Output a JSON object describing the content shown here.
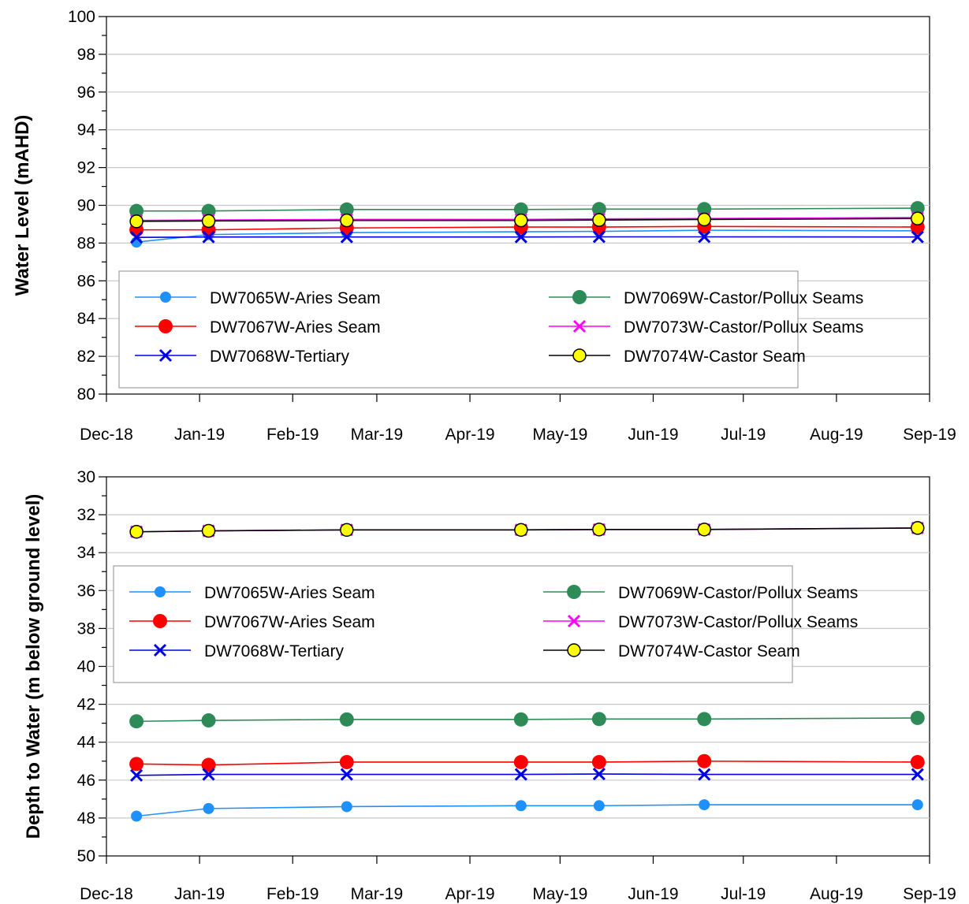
{
  "chart_data": [
    {
      "type": "line",
      "title": "",
      "xlabel": "",
      "ylabel": "Water Level (mAHD)",
      "ylim": [
        80,
        100
      ],
      "y_ticks": [
        80,
        82,
        84,
        86,
        88,
        90,
        92,
        94,
        96,
        98,
        100
      ],
      "y_minor_step": 1,
      "y_reversed": false,
      "xlim": [
        "2018-12-01",
        "2019-09-01"
      ],
      "x_ticks": [
        {
          "date": "2018-12-01",
          "label": "Dec-18"
        },
        {
          "date": "2019-01-01",
          "label": "Jan-19"
        },
        {
          "date": "2019-02-01",
          "label": "Feb-19"
        },
        {
          "date": "2019-03-01",
          "label": "Mar-19"
        },
        {
          "date": "2019-04-01",
          "label": "Apr-19"
        },
        {
          "date": "2019-05-01",
          "label": "May-19"
        },
        {
          "date": "2019-06-01",
          "label": "Jun-19"
        },
        {
          "date": "2019-07-01",
          "label": "Jul-19"
        },
        {
          "date": "2019-08-01",
          "label": "Aug-19"
        },
        {
          "date": "2019-09-01",
          "label": "Sep-19"
        }
      ],
      "grid": "horizontal",
      "legend_position": "lower-left",
      "x": [
        "2018-12-11",
        "2019-01-04",
        "2019-02-19",
        "2019-04-18",
        "2019-05-14",
        "2019-06-18",
        "2019-08-28"
      ],
      "series": [
        {
          "name": "DW7065W-Aries Seam",
          "color": "#1E90FF",
          "marker": "circle-small",
          "values": [
            88.05,
            88.45,
            88.55,
            88.6,
            88.62,
            88.68,
            88.65
          ]
        },
        {
          "name": "DW7069W-Castor/Pollux Seams",
          "color": "#2E8B57",
          "marker": "circle-large",
          "values": [
            89.7,
            89.7,
            89.78,
            89.78,
            89.8,
            89.8,
            89.85
          ]
        },
        {
          "name": "DW7067W-Aries Seam",
          "color": "#FF0000",
          "marker": "circle-large",
          "values": [
            88.7,
            88.7,
            88.8,
            88.85,
            88.85,
            88.88,
            88.85
          ]
        },
        {
          "name": "DW7073W-Castor/Pollux Seams",
          "color": "#FF00FF",
          "marker": "x",
          "values": [
            89.2,
            89.22,
            89.25,
            89.25,
            89.28,
            89.3,
            89.35
          ]
        },
        {
          "name": "DW7068W-Tertiary",
          "color": "#0000E0",
          "marker": "x",
          "values": [
            88.3,
            88.32,
            88.32,
            88.32,
            88.33,
            88.33,
            88.32
          ]
        },
        {
          "name": "DW7074W-Castor Seam",
          "color": "#000000",
          "marker": "circle-yellow",
          "values": [
            89.15,
            89.17,
            89.2,
            89.2,
            89.22,
            89.25,
            89.3
          ]
        }
      ]
    },
    {
      "type": "line",
      "title": "",
      "xlabel": "",
      "ylabel": "Depth to Water (m below ground level)",
      "ylim": [
        30,
        50
      ],
      "y_ticks": [
        30,
        32,
        34,
        36,
        38,
        40,
        42,
        44,
        46,
        48,
        50
      ],
      "y_minor_step": 1,
      "y_reversed": true,
      "xlim": [
        "2018-12-01",
        "2019-09-01"
      ],
      "x_ticks": [
        {
          "date": "2018-12-01",
          "label": "Dec-18"
        },
        {
          "date": "2019-01-01",
          "label": "Jan-19"
        },
        {
          "date": "2019-02-01",
          "label": "Feb-19"
        },
        {
          "date": "2019-03-01",
          "label": "Mar-19"
        },
        {
          "date": "2019-04-01",
          "label": "Apr-19"
        },
        {
          "date": "2019-05-01",
          "label": "May-19"
        },
        {
          "date": "2019-06-01",
          "label": "Jun-19"
        },
        {
          "date": "2019-07-01",
          "label": "Jul-19"
        },
        {
          "date": "2019-08-01",
          "label": "Aug-19"
        },
        {
          "date": "2019-09-01",
          "label": "Sep-19"
        }
      ],
      "grid": "horizontal",
      "legend_position": "upper-left",
      "x": [
        "2018-12-11",
        "2019-01-04",
        "2019-02-19",
        "2019-04-18",
        "2019-05-14",
        "2019-06-18",
        "2019-08-28"
      ],
      "series": [
        {
          "name": "DW7065W-Aries Seam",
          "color": "#1E90FF",
          "marker": "circle-small",
          "values": [
            47.9,
            47.5,
            47.4,
            47.35,
            47.35,
            47.3,
            47.3
          ]
        },
        {
          "name": "DW7069W-Castor/Pollux Seams",
          "color": "#2E8B57",
          "marker": "circle-large",
          "values": [
            42.9,
            42.85,
            42.8,
            42.8,
            42.78,
            42.78,
            42.72
          ]
        },
        {
          "name": "DW7067W-Aries Seam",
          "color": "#FF0000",
          "marker": "circle-large",
          "values": [
            45.15,
            45.2,
            45.05,
            45.05,
            45.05,
            45.0,
            45.05
          ]
        },
        {
          "name": "DW7073W-Castor/Pollux Seams",
          "color": "#FF00FF",
          "marker": "x",
          "values": [
            32.9,
            32.85,
            32.8,
            32.8,
            32.78,
            32.78,
            32.7
          ]
        },
        {
          "name": "DW7068W-Tertiary",
          "color": "#0000E0",
          "marker": "x",
          "values": [
            45.75,
            45.7,
            45.7,
            45.7,
            45.68,
            45.7,
            45.7
          ]
        },
        {
          "name": "DW7074W-Castor Seam",
          "color": "#000000",
          "marker": "circle-yellow",
          "values": [
            32.9,
            32.85,
            32.8,
            32.8,
            32.78,
            32.78,
            32.7
          ]
        }
      ]
    }
  ]
}
